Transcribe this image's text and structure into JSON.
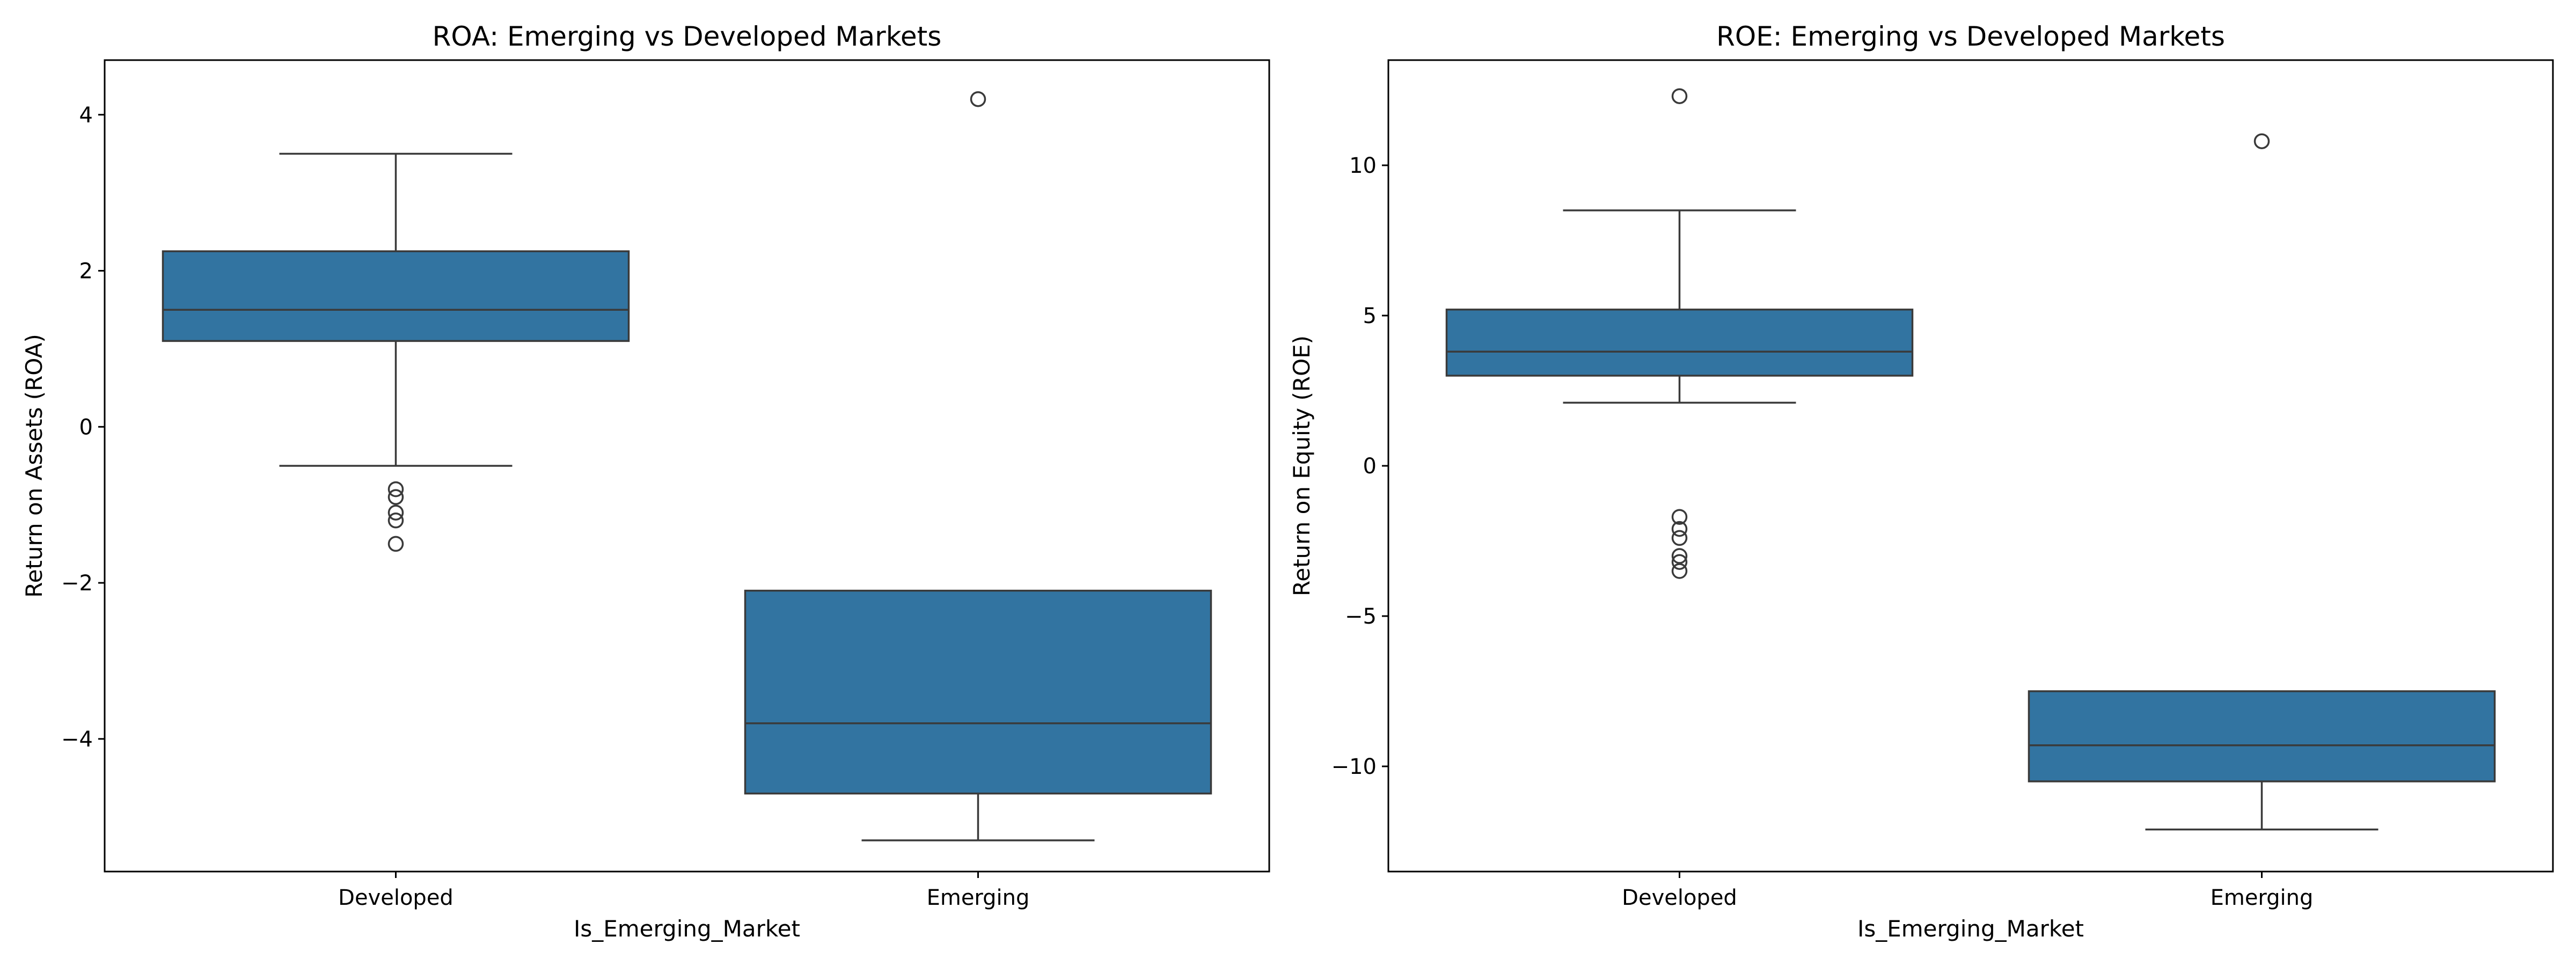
{
  "colors": {
    "box_fill": "#3274a1",
    "line": "#3a3a3a",
    "axis": "#000000",
    "background": "#ffffff"
  },
  "chart_data": [
    {
      "type": "box",
      "title": "ROA: Emerging vs Developed Markets",
      "xlabel": "Is_Emerging_Market",
      "ylabel": "Return on Assets (ROA)",
      "categories": [
        "Developed",
        "Emerging"
      ],
      "ylim": [
        -5.7,
        4.7
      ],
      "yticks": [
        -4,
        -2,
        0,
        2,
        4
      ],
      "ytick_labels": [
        "−4",
        "−2",
        "0",
        "2",
        "4"
      ],
      "grid": false,
      "boxes": [
        {
          "category": "Developed",
          "whisker_low": -0.5,
          "q1": 1.1,
          "median": 1.5,
          "q3": 2.25,
          "whisker_high": 3.5,
          "outliers": [
            -0.8,
            -0.9,
            -1.1,
            -1.2,
            -1.5
          ]
        },
        {
          "category": "Emerging",
          "whisker_low": -5.3,
          "q1": -4.7,
          "median": -3.8,
          "q3": -2.1,
          "whisker_high": -2.1,
          "outliers": [
            4.2
          ]
        }
      ]
    },
    {
      "type": "box",
      "title": "ROE: Emerging vs Developed Markets",
      "xlabel": "Is_Emerging_Market",
      "ylabel": "Return on Equity (ROE)",
      "categories": [
        "Developed",
        "Emerging"
      ],
      "ylim": [
        -13.5,
        13.5
      ],
      "yticks": [
        -10,
        -5,
        0,
        5,
        10
      ],
      "ytick_labels": [
        "−10",
        "−5",
        "0",
        "5",
        "10"
      ],
      "grid": false,
      "boxes": [
        {
          "category": "Developed",
          "whisker_low": 2.1,
          "q1": 3.0,
          "median": 3.8,
          "q3": 5.2,
          "whisker_high": 8.5,
          "outliers": [
            12.3,
            -1.7,
            -2.1,
            -2.4,
            -3.0,
            -3.2,
            -3.5
          ]
        },
        {
          "category": "Emerging",
          "whisker_low": -12.1,
          "q1": -10.5,
          "median": -9.3,
          "q3": -7.5,
          "whisker_high": -7.5,
          "outliers": [
            10.8
          ]
        }
      ]
    }
  ]
}
